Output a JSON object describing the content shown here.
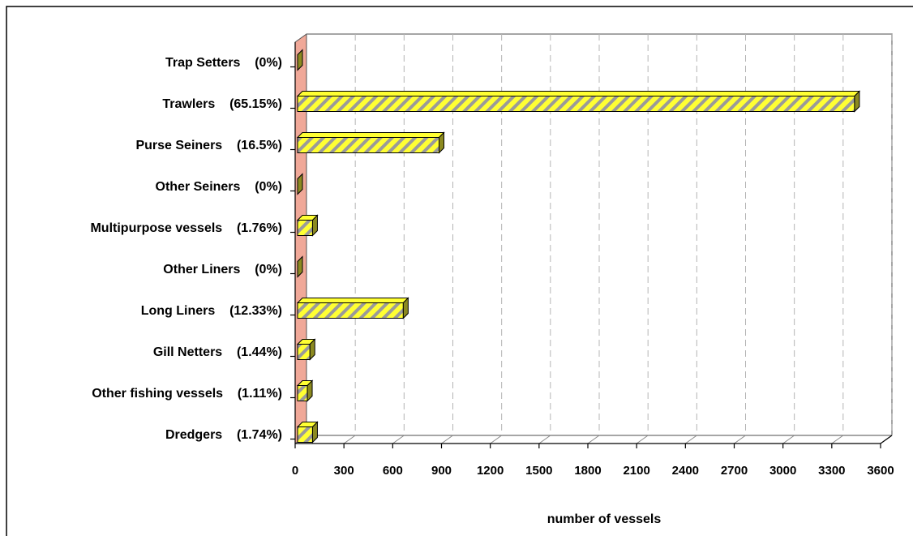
{
  "chart_data": {
    "type": "bar",
    "orientation": "horizontal",
    "categories": [
      "Trap Setters    (0%)",
      "Trawlers    (65.15%)",
      "Purse Seiners    (16.5%)",
      "Other Seiners    (0%)",
      "Multipurpose vessels    (1.76%)",
      "Other Liners    (0%)",
      "Long Liners    (12.33%)",
      "Gill Netters    (1.44%)",
      "Other fishing vessels    (1.11%)",
      "Dredgers    (1.74%)"
    ],
    "values": [
      0,
      3425,
      870,
      0,
      92,
      0,
      650,
      76,
      60,
      92
    ],
    "xlabel": "number of vessels",
    "ylabel": "",
    "xlim": [
      0,
      3600
    ],
    "xticks": [
      "0",
      "300",
      "600",
      "900",
      "1200",
      "1500",
      "1800",
      "2100",
      "2400",
      "2700",
      "3000",
      "3300",
      "3600"
    ],
    "grid": "vertical-dashed",
    "legend": "none",
    "colors": {
      "bar_fill": "#ffff33",
      "bar_hatch": "#9a9a9a",
      "bar_side": "#8c8a20",
      "bar_outline": "#000000",
      "wall": "#f0a898",
      "grid": "#b4b4b4",
      "frame": "#000000"
    }
  }
}
